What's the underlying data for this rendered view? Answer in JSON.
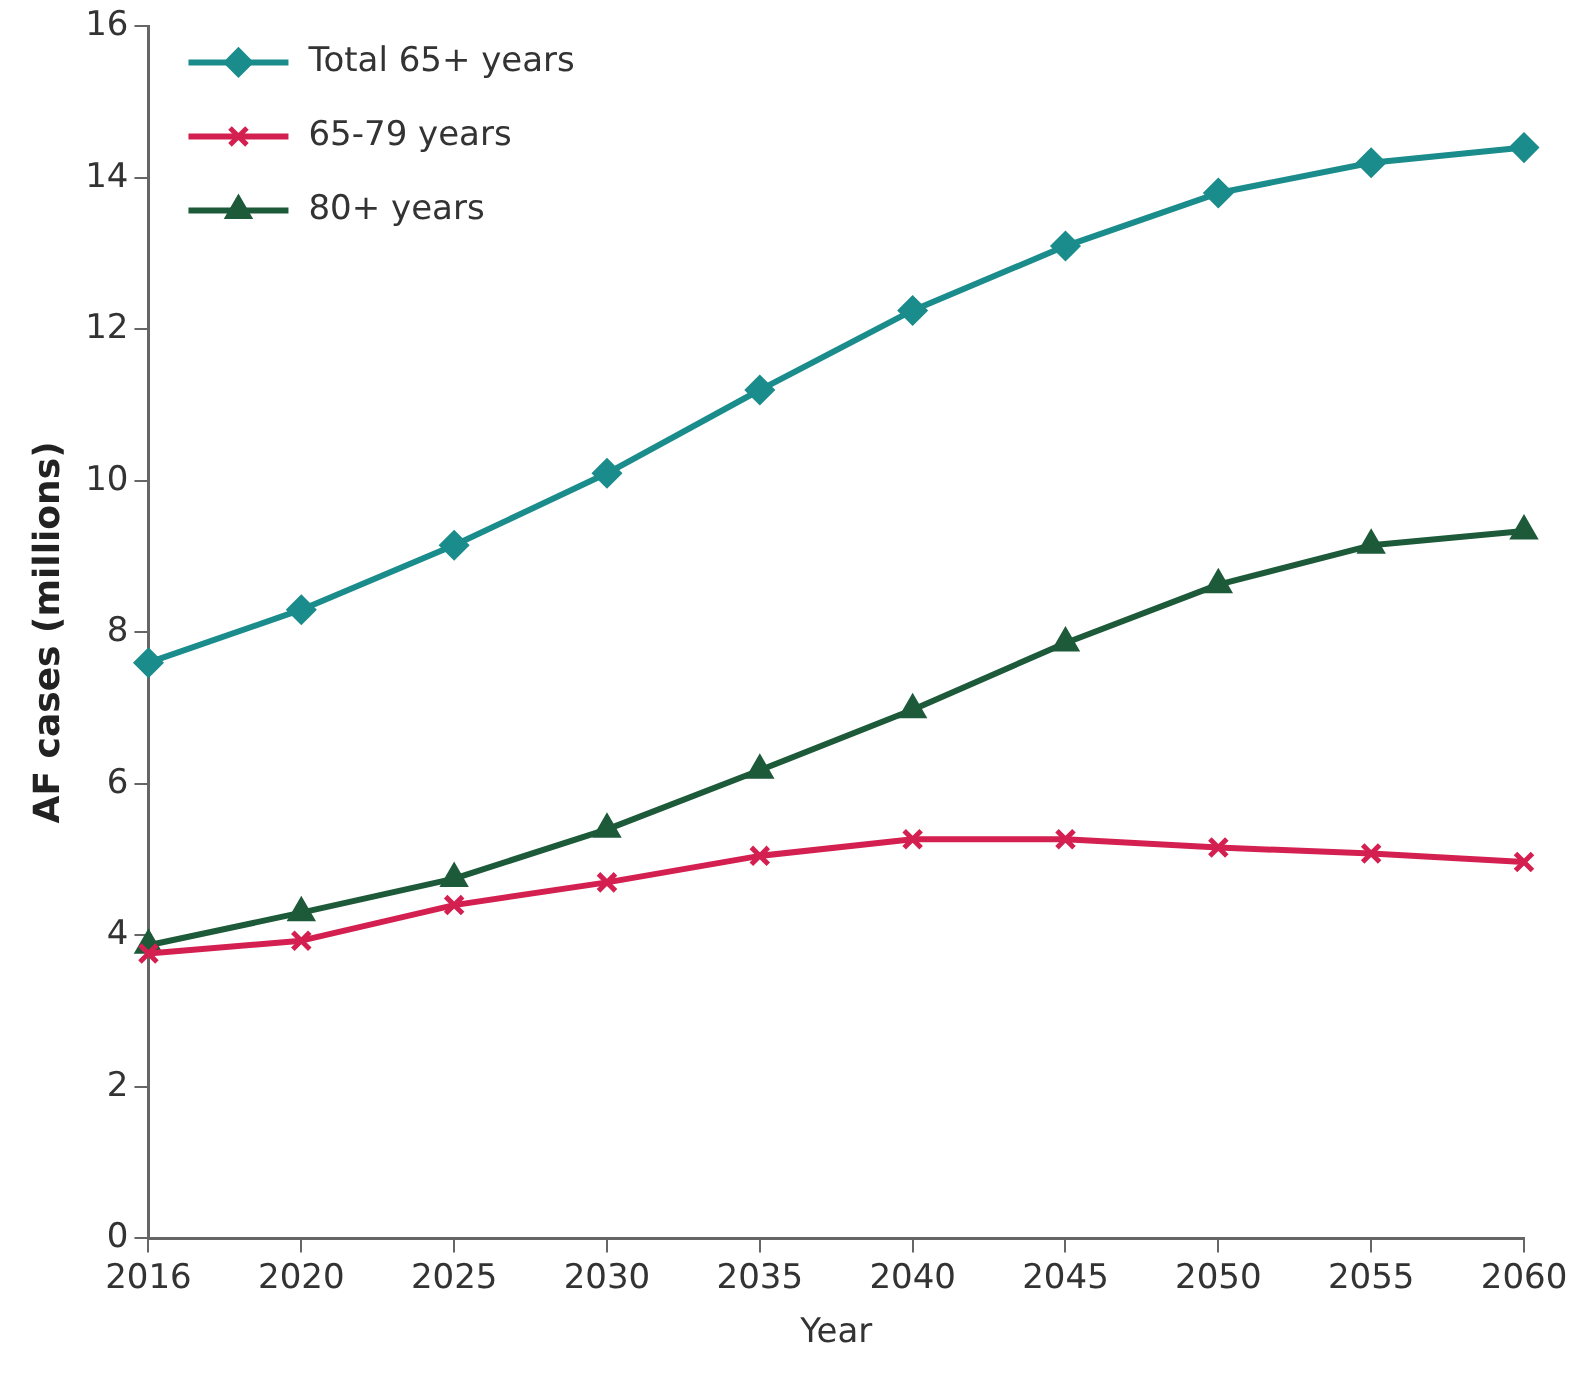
{
  "chart_data": {
    "type": "line",
    "xlabel": "Year",
    "ylabel": "AF cases (millions)",
    "categories": [
      "2016",
      "2020",
      "2025",
      "2030",
      "2035",
      "2040",
      "2045",
      "2050",
      "2055",
      "2060"
    ],
    "ylim": [
      0,
      16
    ],
    "yticks": [
      0,
      2,
      4,
      6,
      8,
      10,
      12,
      14,
      16
    ],
    "grid": false,
    "legend": "top left",
    "line_style": "solid",
    "series": [
      {
        "name": "Total 65+ years",
        "color": "#1b8c8c",
        "marker": "diamond",
        "values": [
          7.6,
          8.3,
          9.15,
          10.1,
          11.2,
          12.25,
          13.1,
          13.8,
          14.2,
          14.4
        ]
      },
      {
        "name": "65-79 years",
        "color": "#d42050",
        "marker": "cross",
        "values": [
          3.76,
          3.93,
          4.4,
          4.7,
          5.05,
          5.27,
          5.27,
          5.16,
          5.08,
          4.97
        ]
      },
      {
        "name": "80+ years",
        "color": "#1d5a3a",
        "marker": "triangle",
        "values": [
          3.87,
          4.3,
          4.75,
          5.4,
          6.18,
          6.98,
          7.86,
          8.63,
          9.15,
          9.34
        ]
      }
    ]
  }
}
